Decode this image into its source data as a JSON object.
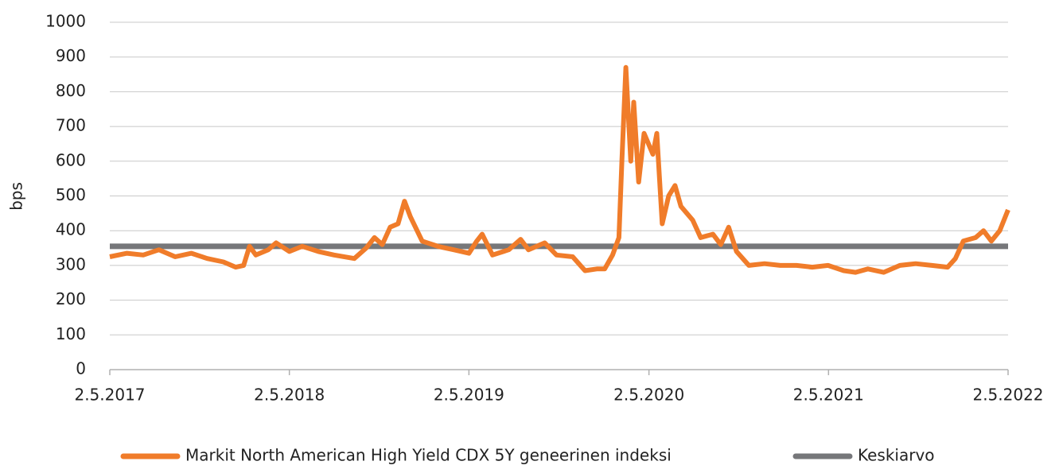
{
  "chart_data": {
    "type": "line",
    "y_label": "bps",
    "x": [
      "2017-05-02",
      "2017-06-06",
      "2017-07-09",
      "2017-08-10",
      "2017-09-12",
      "2017-10-15",
      "2017-11-16",
      "2017-12-19",
      "2018-01-13",
      "2018-01-29",
      "2018-02-10",
      "2018-02-23",
      "2018-03-20",
      "2018-04-05",
      "2018-05-02",
      "2018-05-28",
      "2018-06-30",
      "2018-08-01",
      "2018-09-11",
      "2018-10-05",
      "2018-10-22",
      "2018-11-07",
      "2018-11-23",
      "2018-12-09",
      "2018-12-22",
      "2019-01-03",
      "2019-01-27",
      "2019-02-28",
      "2019-04-01",
      "2019-05-02",
      "2019-05-18",
      "2019-05-29",
      "2019-06-19",
      "2019-07-22",
      "2019-08-15",
      "2019-08-31",
      "2019-10-03",
      "2019-10-27",
      "2019-11-29",
      "2019-12-24",
      "2020-01-17",
      "2020-02-02",
      "2020-02-18",
      "2020-03-02",
      "2020-03-08",
      "2020-03-16",
      "2020-03-26",
      "2020-04-01",
      "2020-04-11",
      "2020-04-22",
      "2020-05-10",
      "2020-05-18",
      "2020-05-29",
      "2020-06-11",
      "2020-06-24",
      "2020-07-06",
      "2020-07-30",
      "2020-08-15",
      "2020-09-09",
      "2020-09-25",
      "2020-10-11",
      "2020-10-27",
      "2020-11-21",
      "2020-12-23",
      "2021-01-24",
      "2021-02-26",
      "2021-03-30",
      "2021-05-01",
      "2021-06-02",
      "2021-06-26",
      "2021-07-21",
      "2021-08-22",
      "2021-09-24",
      "2021-10-26",
      "2021-11-28",
      "2021-12-30",
      "2022-01-15",
      "2022-01-31",
      "2022-02-25",
      "2022-03-13",
      "2022-03-29",
      "2022-04-15",
      "2022-05-02"
    ],
    "series": [
      {
        "name": "Markit North American High Yield CDX 5Y geneerinen indeksi",
        "color": "#f07c2a",
        "values": [
          325,
          335,
          330,
          345,
          325,
          335,
          320,
          310,
          295,
          300,
          355,
          330,
          345,
          365,
          340,
          355,
          340,
          330,
          320,
          350,
          380,
          360,
          410,
          420,
          485,
          440,
          370,
          355,
          345,
          335,
          370,
          390,
          330,
          345,
          375,
          345,
          365,
          330,
          325,
          285,
          290,
          290,
          330,
          380,
          600,
          870,
          600,
          770,
          540,
          680,
          620,
          680,
          420,
          500,
          530,
          470,
          430,
          380,
          390,
          360,
          410,
          340,
          300,
          305,
          300,
          300,
          295,
          300,
          285,
          280,
          290,
          280,
          300,
          305,
          300,
          295,
          320,
          370,
          380,
          400,
          370,
          400,
          460
        ]
      },
      {
        "name": "Keskiarvo",
        "color": "#76777a",
        "x": [
          "2017-05-02",
          "2022-05-02"
        ],
        "values": [
          355,
          355
        ]
      }
    ],
    "xlim": [
      "2017-05-02",
      "2022-05-02"
    ],
    "xticks": [
      {
        "value": "2017-05-02",
        "label": "2.5.2017"
      },
      {
        "value": "2018-05-02",
        "label": "2.5.2018"
      },
      {
        "value": "2019-05-02",
        "label": "2.5.2019"
      },
      {
        "value": "2020-05-02",
        "label": "2.5.2020"
      },
      {
        "value": "2021-05-02",
        "label": "2.5.2021"
      },
      {
        "value": "2022-05-02",
        "label": "2.5.2022"
      }
    ],
    "ylim": [
      0,
      1000
    ],
    "yticks": [
      0,
      100,
      200,
      300,
      400,
      500,
      600,
      700,
      800,
      900,
      1000
    ],
    "grid": true,
    "legend": "bottom"
  }
}
